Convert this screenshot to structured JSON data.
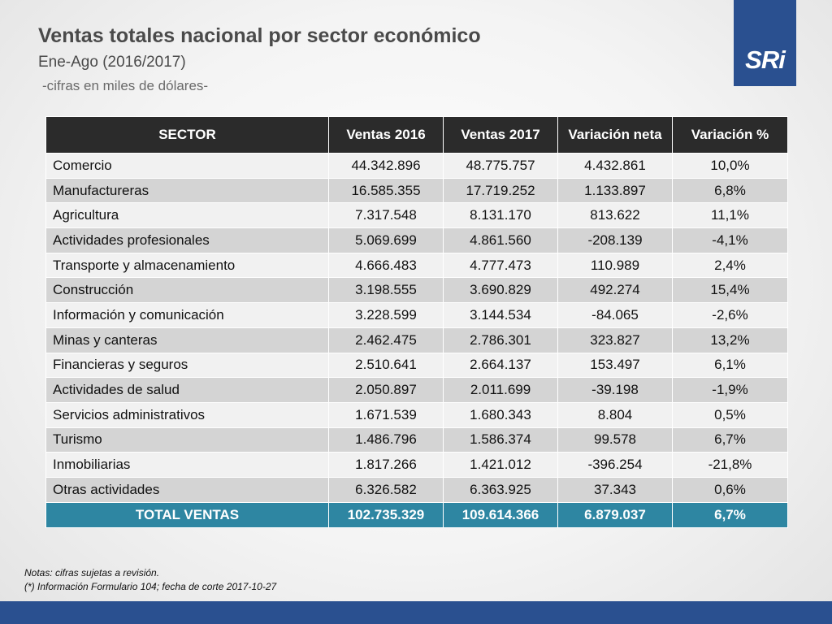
{
  "header": {
    "title": "Ventas totales nacional por sector económico",
    "subtitle": "Ene-Ago (2016/2017)",
    "units": "-cifras en miles de dólares-"
  },
  "logo": {
    "text": "SRi",
    "color": "#2a5090"
  },
  "table": {
    "columns": [
      "SECTOR",
      "Ventas 2016",
      "Ventas 2017",
      "Variación neta",
      "Variación %"
    ],
    "rows": [
      [
        "Comercio",
        "44.342.896",
        "48.775.757",
        "4.432.861",
        "10,0%"
      ],
      [
        "Manufactureras",
        "16.585.355",
        "17.719.252",
        "1.133.897",
        "6,8%"
      ],
      [
        "Agricultura",
        "7.317.548",
        "8.131.170",
        "813.622",
        "11,1%"
      ],
      [
        "Actividades profesionales",
        "5.069.699",
        "4.861.560",
        "-208.139",
        "-4,1%"
      ],
      [
        "Transporte y almacenamiento",
        "4.666.483",
        "4.777.473",
        "110.989",
        "2,4%"
      ],
      [
        "Construcción",
        "3.198.555",
        "3.690.829",
        "492.274",
        "15,4%"
      ],
      [
        "Información y comunicación",
        "3.228.599",
        "3.144.534",
        "-84.065",
        "-2,6%"
      ],
      [
        "Minas y canteras",
        "2.462.475",
        "2.786.301",
        "323.827",
        "13,2%"
      ],
      [
        "Financieras y seguros",
        "2.510.641",
        "2.664.137",
        "153.497",
        "6,1%"
      ],
      [
        "Actividades de salud",
        "2.050.897",
        "2.011.699",
        "-39.198",
        "-1,9%"
      ],
      [
        "Servicios administrativos",
        "1.671.539",
        "1.680.343",
        "8.804",
        "0,5%"
      ],
      [
        "Turismo",
        "1.486.796",
        "1.586.374",
        "99.578",
        "6,7%"
      ],
      [
        "Inmobiliarias",
        "1.817.266",
        "1.421.012",
        "-396.254",
        "-21,8%"
      ],
      [
        "Otras actividades",
        "6.326.582",
        "6.363.925",
        "37.343",
        "0,6%"
      ]
    ],
    "total": [
      "TOTAL VENTAS",
      "102.735.329",
      "109.614.366",
      "6.879.037",
      "6,7%"
    ]
  },
  "notes": {
    "line1": "Notas: cifras sujetas a revisión.",
    "line2": "(*) Información Formulario 104; fecha de corte 2017-10-27"
  },
  "colors": {
    "header_bg": "#2b2b2b",
    "total_bg": "#2e86a2",
    "brand_blue": "#2a5090"
  }
}
